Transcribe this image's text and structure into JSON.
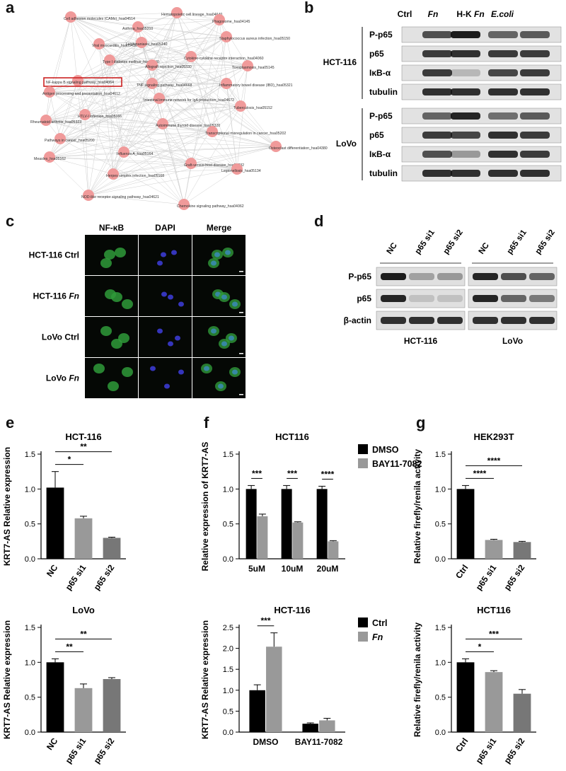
{
  "panels": {
    "a": "a",
    "b": "b",
    "c": "c",
    "d": "d",
    "e": "e",
    "f": "f",
    "g": "g"
  },
  "network": {
    "highlight_color": "#cc2222",
    "node_color": "#f09a9a",
    "nodes": [
      {
        "label": "Hematopoietic cell lineage_hsa04640"
      },
      {
        "label": "Phagosome_hsa04145"
      },
      {
        "label": "Cell adhesion molecules (CAMs)_hsa04514"
      },
      {
        "label": "Asthma_hsa05310"
      },
      {
        "label": "Staphylococcus aureus infection_hsa05150"
      },
      {
        "label": "Viral myocarditis_hsa05416"
      },
      {
        "label": "Leishmaniasis_hsa05140"
      },
      {
        "label": "Type I diabetes mellitus_hsa04940"
      },
      {
        "label": "Cytokine-cytokine receptor interaction_hsa04060"
      },
      {
        "label": "Toxoplasmosis_hsa05145"
      },
      {
        "label": "Allograft rejection_hsa05330"
      },
      {
        "label": "NF-kappa B signaling pathway_hsa04064"
      },
      {
        "label": "TNF signaling pathway_hsa04668"
      },
      {
        "label": "Inflammatory bowel disease (IBD)_hsa05321"
      },
      {
        "label": "Antigen processing and presentation_hsa04612"
      },
      {
        "label": "Intestinal immune network for IgA production_hsa04672"
      },
      {
        "label": "Tuberculosis_hsa05152"
      },
      {
        "label": "HTLV-I infection_hsa05166"
      },
      {
        "label": "Rheumatoid arthritis_hsa05323"
      },
      {
        "label": "Autoimmune thyroid disease_hsa05320"
      },
      {
        "label": "Transcriptional misregulation in cancer_hsa05202"
      },
      {
        "label": "Pathways in cancer_hsa05200"
      },
      {
        "label": "Osteoclast differentiation_hsa04380"
      },
      {
        "label": "Influenza A_hsa05164"
      },
      {
        "label": "Measles_hsa05162"
      },
      {
        "label": "Herpes simplex infection_hsa05168"
      },
      {
        "label": "Graft-versus-host disease_hsa05332"
      },
      {
        "label": "Legionellosis_hsa05134"
      },
      {
        "label": "NOD-like receptor signaling pathway_hsa04621"
      },
      {
        "label": "Chemokine signaling pathway_hsa04062"
      }
    ]
  },
  "blot_b": {
    "columns": [
      "Ctrl",
      "Fn",
      "H-K Fn",
      "E.coli"
    ],
    "cell_lines": [
      {
        "name": "HCT-116",
        "rows": [
          "P-p65",
          "p65",
          "IκB-α",
          "tubulin"
        ]
      },
      {
        "name": "LoVo",
        "rows": [
          "P-p65",
          "p65",
          "IκB-α",
          "tubulin"
        ]
      }
    ]
  },
  "if_c": {
    "columns": [
      "NF-κB",
      "DAPI",
      "Merge"
    ],
    "rows": [
      "HCT-116 Ctrl",
      "HCT-116 Fn",
      "LoVo Ctrl",
      "LoVo Fn"
    ]
  },
  "blot_d": {
    "lanes": [
      "NC",
      "p65 si1",
      "p65 si2"
    ],
    "rows": [
      "P-p65",
      "p65",
      "β-actin"
    ],
    "cell_lines": [
      "HCT-116",
      "LoVo"
    ]
  },
  "chart_data": [
    {
      "panel": "e",
      "type": "bar",
      "title": "HCT-116",
      "ylabel": "KRT7-AS Relative expression",
      "categories": [
        "NC",
        "p65 si1",
        "p65 si2"
      ],
      "values": [
        1.02,
        0.58,
        0.3
      ],
      "errors": [
        0.23,
        0.03,
        0.01
      ],
      "colors": [
        "#000000",
        "#999999",
        "#777777"
      ],
      "ylim": [
        0,
        1.5
      ],
      "yticks": [
        "0.0",
        "0.5",
        "1.0",
        "1.5"
      ],
      "significance": [
        {
          "from": 0,
          "to": 1,
          "label": "*"
        },
        {
          "from": 0,
          "to": 2,
          "label": "**"
        }
      ]
    },
    {
      "panel": "e",
      "type": "bar",
      "title": "LoVo",
      "ylabel": "KRT7-AS Relative expression",
      "categories": [
        "NC",
        "p65 si1",
        "p65 si2"
      ],
      "values": [
        1.0,
        0.63,
        0.76
      ],
      "errors": [
        0.05,
        0.06,
        0.02
      ],
      "colors": [
        "#000000",
        "#999999",
        "#777777"
      ],
      "ylim": [
        0,
        1.5
      ],
      "yticks": [
        "0.0",
        "0.5",
        "1.0",
        "1.5"
      ],
      "significance": [
        {
          "from": 0,
          "to": 1,
          "label": "**"
        },
        {
          "from": 0,
          "to": 2,
          "label": "**"
        }
      ]
    },
    {
      "panel": "f",
      "type": "bar",
      "title": "HCT116",
      "ylabel": "Relative expression of KRT7-AS",
      "categories": [
        "5uM",
        "10uM",
        "20uM"
      ],
      "series": [
        {
          "name": "DMSO",
          "color": "#000000",
          "values": [
            1.0,
            1.0,
            1.0
          ],
          "errors": [
            0.05,
            0.05,
            0.04
          ]
        },
        {
          "name": "BAY11-7082",
          "color": "#999999",
          "values": [
            0.61,
            0.52,
            0.25
          ],
          "errors": [
            0.03,
            0.01,
            0.01
          ]
        }
      ],
      "ylim": [
        0,
        1.5
      ],
      "yticks": [
        "0.0",
        "0.5",
        "1.0",
        "1.5"
      ],
      "significance": [
        "***",
        "***",
        "****"
      ],
      "legend": "top-right"
    },
    {
      "panel": "f",
      "type": "bar",
      "title": "HCT-116",
      "ylabel": "KRT7-AS Relative expression",
      "categories": [
        "DMSO",
        "BAY11-7082"
      ],
      "series": [
        {
          "name": "Ctrl",
          "color": "#000000",
          "values": [
            1.0,
            0.2
          ],
          "errors": [
            0.13,
            0.02
          ]
        },
        {
          "name": "Fn",
          "color": "#999999",
          "values": [
            2.04,
            0.28
          ],
          "errors": [
            0.33,
            0.05
          ]
        }
      ],
      "ylim": [
        0,
        2.5
      ],
      "yticks": [
        "0.0",
        "0.5",
        "1.0",
        "1.5",
        "2.0",
        "2.5"
      ],
      "significance": [
        "***",
        ""
      ],
      "legend": "top-right"
    },
    {
      "panel": "g",
      "type": "bar",
      "title": "HEK293T",
      "ylabel": "Relative firefly/renila activity",
      "categories": [
        "Ctrl",
        "p65 si1",
        "p65 si2"
      ],
      "values": [
        1.0,
        0.27,
        0.24
      ],
      "errors": [
        0.05,
        0.01,
        0.01
      ],
      "colors": [
        "#000000",
        "#999999",
        "#777777"
      ],
      "ylim": [
        0,
        1.5
      ],
      "yticks": [
        "0.0",
        "0.5",
        "1.0",
        "1.5"
      ],
      "significance": [
        {
          "from": 0,
          "to": 1,
          "label": "****"
        },
        {
          "from": 0,
          "to": 2,
          "label": "****"
        }
      ]
    },
    {
      "panel": "g",
      "type": "bar",
      "title": "HCT116",
      "ylabel": "Relative firefly/renila activity",
      "categories": [
        "Ctrl",
        "p65 si1",
        "p65 si2"
      ],
      "values": [
        1.0,
        0.86,
        0.55
      ],
      "errors": [
        0.05,
        0.02,
        0.06
      ],
      "colors": [
        "#000000",
        "#999999",
        "#777777"
      ],
      "ylim": [
        0,
        1.5
      ],
      "yticks": [
        "0.0",
        "0.5",
        "1.0",
        "1.5"
      ],
      "significance": [
        {
          "from": 0,
          "to": 1,
          "label": "*"
        },
        {
          "from": 0,
          "to": 2,
          "label": "***"
        }
      ]
    }
  ]
}
